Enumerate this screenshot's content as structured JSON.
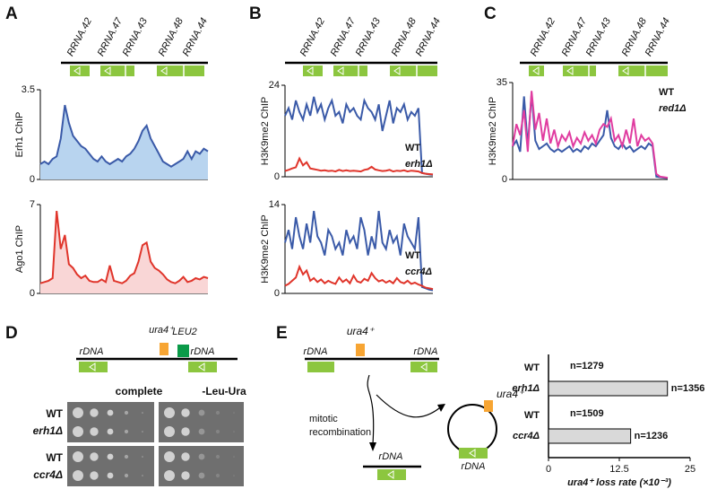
{
  "panel_letters": [
    "A",
    "B",
    "C",
    "D",
    "E"
  ],
  "gene_labels": {
    "a": [
      "RRNA.42",
      "RRNA.47",
      "RRNA.43",
      "RRNA.48",
      "RRNA.44"
    ],
    "b": [
      "RRNA.42",
      "RRNA.47",
      "RRNA.43",
      "RRNA.48",
      "RRNA.44"
    ],
    "c": [
      "RRNA.42",
      "RRNA.47",
      "RRNA.43",
      "RRNA.48",
      "RRNA.44"
    ]
  },
  "chart_data": [
    {
      "type": "line",
      "ylabel": "Erh1 ChIP",
      "ylim": [
        0,
        3.5
      ],
      "yticks": [
        0,
        3.5
      ],
      "fill": true,
      "series": [
        {
          "color": "#3a5aa8",
          "fill_color": "#b8d4ef",
          "values": [
            0.6,
            0.7,
            0.6,
            0.8,
            0.9,
            1.6,
            2.9,
            2.2,
            1.7,
            1.5,
            1.3,
            1.2,
            1.0,
            0.8,
            0.7,
            0.9,
            0.7,
            0.6,
            0.7,
            0.8,
            0.7,
            0.9,
            1.0,
            1.2,
            1.5,
            1.9,
            2.1,
            1.6,
            1.3,
            1.0,
            0.7,
            0.6,
            0.5,
            0.6,
            0.7,
            0.8,
            1.1,
            0.8,
            1.1,
            1.0,
            1.2,
            1.1
          ]
        }
      ]
    },
    {
      "type": "line",
      "ylabel": "Ago1 ChIP",
      "ylim": [
        0,
        7
      ],
      "yticks": [
        0,
        7
      ],
      "fill": true,
      "series": [
        {
          "color": "#e0352b",
          "fill_color": "#f9d6d6",
          "values": [
            0.8,
            0.9,
            1.0,
            1.2,
            6.5,
            3.5,
            4.6,
            2.3,
            2.0,
            1.5,
            1.2,
            1.4,
            1.0,
            0.9,
            0.9,
            1.1,
            0.9,
            2.2,
            1.0,
            0.9,
            0.8,
            1.0,
            1.4,
            1.6,
            2.5,
            3.8,
            4.0,
            2.5,
            2.0,
            1.8,
            1.5,
            1.1,
            0.9,
            0.8,
            1.0,
            1.3,
            0.9,
            1.0,
            1.2,
            1.1,
            1.3,
            1.2
          ]
        }
      ]
    },
    {
      "type": "line",
      "ylabel": "H3K9me2 ChIP",
      "ylim": [
        0,
        24
      ],
      "yticks": [
        0,
        24
      ],
      "fill": false,
      "series": [
        {
          "name": "WT",
          "color": "#3a5aa8",
          "values": [
            16,
            18,
            15,
            20,
            17,
            15,
            19,
            16,
            21,
            17,
            19,
            15,
            18,
            20,
            16,
            17,
            14,
            19,
            17,
            18,
            16,
            15,
            20,
            18,
            17,
            15,
            19,
            12,
            16,
            20,
            14,
            18,
            17,
            19,
            15,
            17,
            16,
            18,
            1.0,
            0.8,
            0.6,
            0.5
          ]
        },
        {
          "name": "erh1Δ",
          "color": "#e0352b",
          "values": [
            1.5,
            1.8,
            2.2,
            2.5,
            4.8,
            3.0,
            3.8,
            2.2,
            2.0,
            1.8,
            1.6,
            1.7,
            1.5,
            1.6,
            1.4,
            1.8,
            1.5,
            1.7,
            1.5,
            1.6,
            1.5,
            1.4,
            1.8,
            2.0,
            2.6,
            1.9,
            1.7,
            1.5,
            1.6,
            1.8,
            1.4,
            1.6,
            1.5,
            1.7,
            1.4,
            1.6,
            1.5,
            1.4,
            1.0,
            0.8,
            0.7,
            0.6
          ]
        }
      ]
    },
    {
      "type": "line",
      "ylabel": "H3K9me2 ChIP",
      "ylim": [
        0,
        14
      ],
      "yticks": [
        0,
        14
      ],
      "fill": false,
      "series": [
        {
          "name": "WT",
          "color": "#3a5aa8",
          "values": [
            8,
            10,
            7,
            12,
            9,
            7,
            11,
            8,
            13,
            9,
            8,
            6,
            10,
            9,
            7,
            8,
            6,
            10,
            8,
            9,
            7,
            12,
            10,
            6,
            9,
            7,
            13,
            8,
            7,
            10,
            8,
            9,
            6,
            11,
            9,
            8,
            7,
            12,
            1.0,
            0.8,
            0.6,
            0.5
          ]
        },
        {
          "name": "ccr4Δ",
          "color": "#e0352b",
          "values": [
            1.2,
            1.5,
            2.0,
            2.5,
            4.2,
            3.0,
            3.6,
            2.0,
            2.4,
            1.8,
            2.2,
            1.6,
            2.0,
            1.7,
            1.5,
            2.5,
            1.8,
            2.2,
            1.6,
            2.8,
            1.9,
            1.7,
            2.3,
            2.0,
            3.2,
            2.4,
            1.9,
            2.1,
            1.7,
            2.0,
            1.6,
            2.4,
            1.8,
            1.6,
            2.0,
            1.5,
            1.7,
            1.4,
            1.2,
            0.9,
            0.8,
            0.7
          ]
        }
      ]
    },
    {
      "type": "line",
      "ylabel": "H3K9me2 ChIP",
      "ylim": [
        0,
        35
      ],
      "yticks": [
        0,
        35
      ],
      "fill": false,
      "series": [
        {
          "name": "WT",
          "color": "#3a5aa8",
          "values": [
            12,
            14,
            10,
            30,
            12,
            31,
            14,
            11,
            12,
            13,
            11,
            10,
            11,
            10,
            11,
            12,
            10,
            11,
            10,
            12,
            11,
            13,
            12,
            14,
            16,
            25,
            15,
            12,
            11,
            13,
            11,
            12,
            10,
            11,
            12,
            11,
            13,
            12,
            1.0,
            0.8,
            0.6,
            0.5
          ]
        },
        {
          "name": "red1Δ",
          "color": "#e03ca0",
          "values": [
            12,
            20,
            16,
            25,
            10,
            32,
            18,
            24,
            14,
            22,
            13,
            18,
            12,
            16,
            14,
            17,
            12,
            15,
            13,
            17,
            14,
            16,
            13,
            18,
            20,
            19,
            22,
            14,
            16,
            12,
            18,
            13,
            22,
            12,
            16,
            14,
            15,
            13,
            2.0,
            1.0,
            0.8,
            0.6
          ]
        }
      ]
    },
    {
      "type": "hbar",
      "categories": [
        "WT",
        "erh1Δ",
        "WT",
        "ccr4Δ"
      ],
      "values": [
        0,
        21,
        0,
        14.5
      ],
      "annotations": [
        "n=1279",
        "n=1356",
        "n=1509",
        "n=1236"
      ],
      "color": "#d9d9d9",
      "xlabel": "ura4⁺ loss rate (×10⁻³)",
      "xlim": [
        0,
        25
      ],
      "xticks": [
        0,
        12.5,
        25
      ]
    }
  ],
  "panel_d": {
    "rdna_left": "rDNA",
    "ura4": "ura4⁺",
    "leu2": "LEU2",
    "rdna_right": "rDNA",
    "media": [
      "complete",
      "-Leu-Ura"
    ],
    "strains": [
      "WT",
      "erh1Δ",
      "WT",
      "ccr4Δ"
    ]
  },
  "panel_e": {
    "rdna_left": "rDNA",
    "ura4": "ura4⁺",
    "rdna_right": "rDNA",
    "process": [
      "mitotic",
      "recombination"
    ],
    "circle_ura4": "ura4⁺",
    "circle_rdna": "rDNA",
    "product_rdna": "rDNA"
  }
}
